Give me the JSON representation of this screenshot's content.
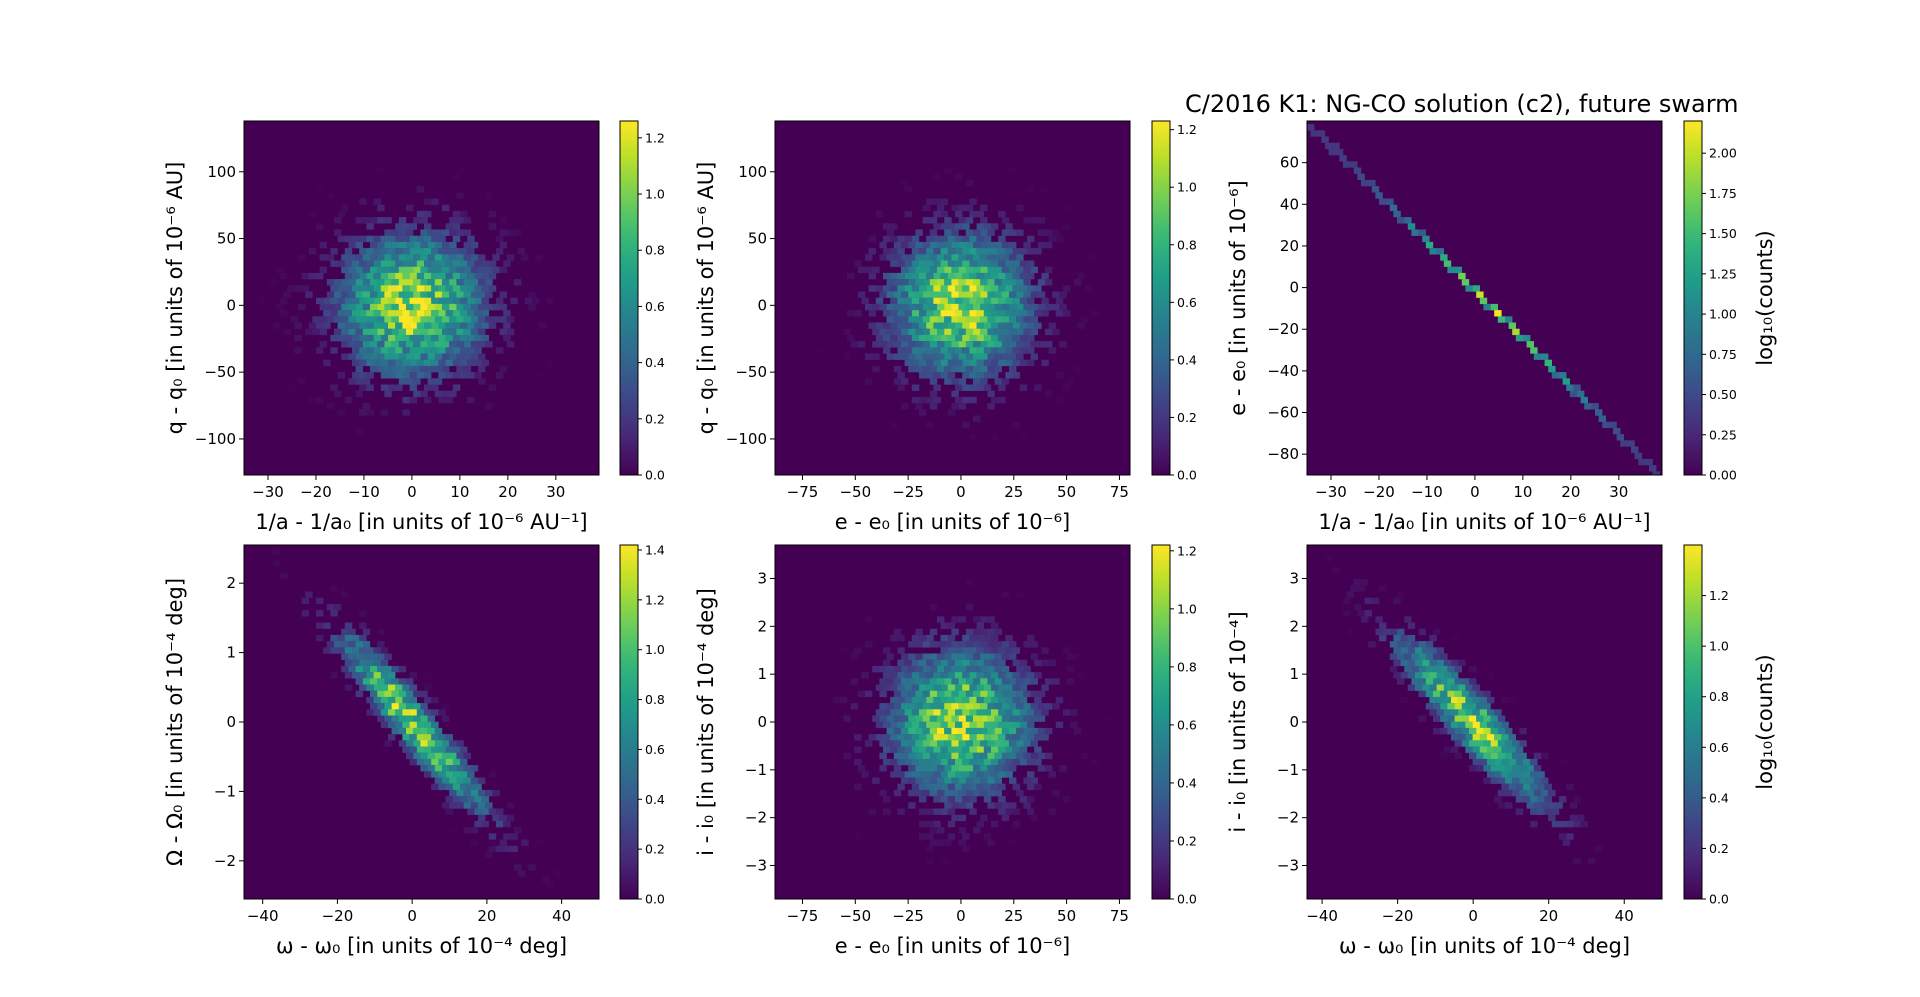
{
  "figure": {
    "title": "C/2016 K1: NG-CO solution (c2),  future swarm"
  },
  "colormap": "viridis",
  "colormap_colors": [
    "#440154",
    "#482878",
    "#3e4989",
    "#31688e",
    "#26828e",
    "#1f9e89",
    "#35b779",
    "#6ece58",
    "#b5de2b",
    "#fde725"
  ],
  "chart_data": [
    {
      "type": "heatmap",
      "subtype": "hexbin",
      "xlabel": "1/a - 1/a₀ [in units of 10⁻⁶ AU⁻¹]",
      "ylabel": "q - q₀ [in units of 10⁻⁶ AU]",
      "xlim": [
        -35,
        39
      ],
      "ylim": [
        -127,
        138
      ],
      "xticks": [
        -30,
        -20,
        -10,
        0,
        10,
        20,
        30
      ],
      "xticklabels": [
        "−30",
        "−20",
        "−10",
        "0",
        "10",
        "20",
        "30"
      ],
      "yticks": [
        -100,
        -50,
        0,
        50,
        100
      ],
      "yticklabels": [
        "−100",
        "−50",
        "0",
        "50",
        "100"
      ],
      "colorbar": {
        "label": "",
        "range": [
          0,
          1.26
        ],
        "ticks": [
          0,
          0.2,
          0.4,
          0.6,
          0.8,
          1.0,
          1.2
        ],
        "ticklabels": [
          "0.0",
          "0.2",
          "0.4",
          "0.6",
          "0.8",
          "1.0",
          "1.2"
        ]
      },
      "distribution": {
        "center": [
          0,
          0
        ],
        "sigma": [
          10,
          35
        ],
        "rho": 0,
        "max": 1.26
      }
    },
    {
      "type": "heatmap",
      "subtype": "hexbin",
      "xlabel": "e - e₀ [in units of 10⁻⁶]",
      "ylabel": "q - q₀ [in units of 10⁻⁶ AU]",
      "xlim": [
        -88,
        80
      ],
      "ylim": [
        -127,
        138
      ],
      "xticks": [
        -75,
        -50,
        -25,
        0,
        25,
        50,
        75
      ],
      "xticklabels": [
        "−75",
        "−50",
        "−25",
        "0",
        "25",
        "50",
        "75"
      ],
      "yticks": [
        -100,
        -50,
        0,
        50,
        100
      ],
      "yticklabels": [
        "−100",
        "−50",
        "0",
        "50",
        "100"
      ],
      "colorbar": {
        "label": "",
        "range": [
          0,
          1.23
        ],
        "ticks": [
          0,
          0.2,
          0.4,
          0.6,
          0.8,
          1.0,
          1.2
        ],
        "ticklabels": [
          "0.0",
          "0.2",
          "0.4",
          "0.6",
          "0.8",
          "1.0",
          "1.2"
        ]
      },
      "distribution": {
        "center": [
          0,
          0
        ],
        "sigma": [
          22,
          35
        ],
        "rho": 0,
        "max": 1.23
      }
    },
    {
      "type": "heatmap",
      "subtype": "hexbin",
      "xlabel": "1/a - 1/a₀ [in units of 10⁻⁶ AU⁻¹]",
      "ylabel": "e - e₀ [in units of 10⁻⁶]",
      "xlim": [
        -35,
        39
      ],
      "ylim": [
        -90,
        80
      ],
      "xticks": [
        -30,
        -20,
        -10,
        0,
        10,
        20,
        30
      ],
      "xticklabels": [
        "−30",
        "−20",
        "−10",
        "0",
        "10",
        "20",
        "30"
      ],
      "yticks": [
        -80,
        -60,
        -40,
        -20,
        0,
        20,
        40,
        60
      ],
      "yticklabels": [
        "−80",
        "−60",
        "−40",
        "−20",
        "0",
        "20",
        "40",
        "60"
      ],
      "colorbar": {
        "label": "log₁₀(counts)",
        "range": [
          0,
          2.2
        ],
        "ticks": [
          0,
          0.25,
          0.5,
          0.75,
          1.0,
          1.25,
          1.5,
          1.75,
          2.0
        ],
        "ticklabels": [
          "0.00",
          "0.25",
          "0.50",
          "0.75",
          "1.00",
          "1.25",
          "1.50",
          "1.75",
          "2.00"
        ]
      },
      "distribution": {
        "line": {
          "x0": -33,
          "y0": 75,
          "x1": 38,
          "y1": -89
        },
        "max": 2.2
      }
    },
    {
      "type": "heatmap",
      "subtype": "hexbin",
      "xlabel": "ω - ω₀ [in units of 10⁻⁴ deg]",
      "ylabel": "Ω - Ω₀ [in units of 10⁻⁴ deg]",
      "xlim": [
        -45,
        50
      ],
      "ylim": [
        -2.55,
        2.55
      ],
      "xticks": [
        -40,
        -20,
        0,
        20,
        40
      ],
      "xticklabels": [
        "−40",
        "−20",
        "0",
        "20",
        "40"
      ],
      "yticks": [
        -2,
        -1,
        0,
        1,
        2
      ],
      "yticklabels": [
        "−2",
        "−1",
        "0",
        "1",
        "2"
      ],
      "colorbar": {
        "label": "",
        "range": [
          0,
          1.42
        ],
        "ticks": [
          0,
          0.2,
          0.4,
          0.6,
          0.8,
          1.0,
          1.2,
          1.4
        ],
        "ticklabels": [
          "0.0",
          "0.2",
          "0.4",
          "0.6",
          "0.8",
          "1.0",
          "1.2",
          "1.4"
        ]
      },
      "distribution": {
        "center": [
          0,
          0
        ],
        "sigma": [
          13,
          0.85
        ],
        "rho": -0.94,
        "max": 1.42
      }
    },
    {
      "type": "heatmap",
      "subtype": "hexbin",
      "xlabel": "e - e₀ [in units of 10⁻⁶]",
      "ylabel": "i - i₀ [in units of 10⁻⁴ deg]",
      "xlim": [
        -88,
        80
      ],
      "ylim": [
        -3.7,
        3.7
      ],
      "xticks": [
        -75,
        -50,
        -25,
        0,
        25,
        50,
        75
      ],
      "xticklabels": [
        "−75",
        "−50",
        "−25",
        "0",
        "25",
        "50",
        "75"
      ],
      "yticks": [
        -3,
        -2,
        -1,
        0,
        1,
        2,
        3
      ],
      "yticklabels": [
        "−3",
        "−2",
        "−1",
        "0",
        "1",
        "2",
        "3"
      ],
      "colorbar": {
        "label": "",
        "range": [
          0,
          1.22
        ],
        "ticks": [
          0,
          0.2,
          0.4,
          0.6,
          0.8,
          1.0,
          1.2
        ],
        "ticklabels": [
          "0.0",
          "0.2",
          "0.4",
          "0.6",
          "0.8",
          "1.0",
          "1.2"
        ]
      },
      "distribution": {
        "center": [
          0,
          0
        ],
        "sigma": [
          22,
          1.0
        ],
        "rho": 0,
        "max": 1.22
      }
    },
    {
      "type": "heatmap",
      "subtype": "hexbin",
      "xlabel": "ω - ω₀ [in units of 10⁻⁴ deg]",
      "ylabel": "i - i₀ [in units of 10⁻⁴]",
      "xlim": [
        -44,
        50
      ],
      "ylim": [
        -3.7,
        3.7
      ],
      "xticks": [
        -40,
        -20,
        0,
        20,
        40
      ],
      "xticklabels": [
        "−40",
        "−20",
        "0",
        "20",
        "40"
      ],
      "yticks": [
        -3,
        -2,
        -1,
        0,
        1,
        2,
        3
      ],
      "yticklabels": [
        "−3",
        "−2",
        "−1",
        "0",
        "1",
        "2",
        "3"
      ],
      "colorbar": {
        "label": "log₁₀(counts)",
        "range": [
          0,
          1.4
        ],
        "ticks": [
          0,
          0.2,
          0.4,
          0.6,
          0.8,
          1.0,
          1.2
        ],
        "ticklabels": [
          "0.0",
          "0.2",
          "0.4",
          "0.6",
          "0.8",
          "1.0",
          "1.2"
        ]
      },
      "distribution": {
        "center": [
          0,
          0
        ],
        "sigma": [
          13,
          1.15
        ],
        "rho": -0.92,
        "max": 1.4
      }
    }
  ]
}
